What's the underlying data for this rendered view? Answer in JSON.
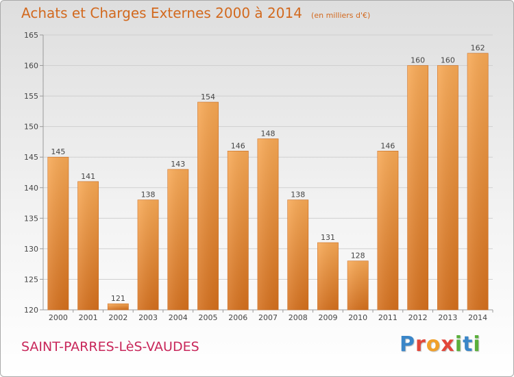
{
  "header": {
    "title": "Achats et Charges Externes 2000 à 2014",
    "unit": "(en milliers d'€)"
  },
  "footer": {
    "city": "SAINT-PARRES-LèS-VAUDES",
    "logo_letters": [
      "P",
      "r",
      "o",
      "x",
      "i",
      "t",
      "i"
    ]
  },
  "colors": {
    "title": "#d2691e",
    "bar_light": "#f8a955",
    "bar_dark": "#d5701d",
    "city": "#c8265a",
    "logo": [
      "#3a86c8",
      "#e2463a",
      "#f0a02a",
      "#e2463a",
      "#5aaf3a",
      "#3a86c8",
      "#5aaf3a"
    ]
  },
  "chart_data": {
    "type": "bar",
    "categories": [
      "2000",
      "2001",
      "2002",
      "2003",
      "2004",
      "2005",
      "2006",
      "2007",
      "2008",
      "2009",
      "2010",
      "2011",
      "2012",
      "2013",
      "2014"
    ],
    "values": [
      145,
      141,
      121,
      138,
      143,
      154,
      146,
      148,
      138,
      131,
      128,
      146,
      160,
      160,
      162
    ],
    "data_labels": [
      "145",
      "141",
      "121",
      "138",
      "143",
      "154",
      "146",
      "148",
      "138",
      "131",
      "128",
      "146",
      "160",
      "160",
      "162"
    ],
    "yticks": [
      "120",
      "125",
      "130",
      "135",
      "140",
      "145",
      "150",
      "155",
      "160",
      "165"
    ],
    "ylim": [
      120,
      165
    ],
    "title": "Achats et Charges Externes 2000 à 2014",
    "xlabel": "",
    "ylabel": "",
    "grid": true,
    "legend": "none"
  }
}
